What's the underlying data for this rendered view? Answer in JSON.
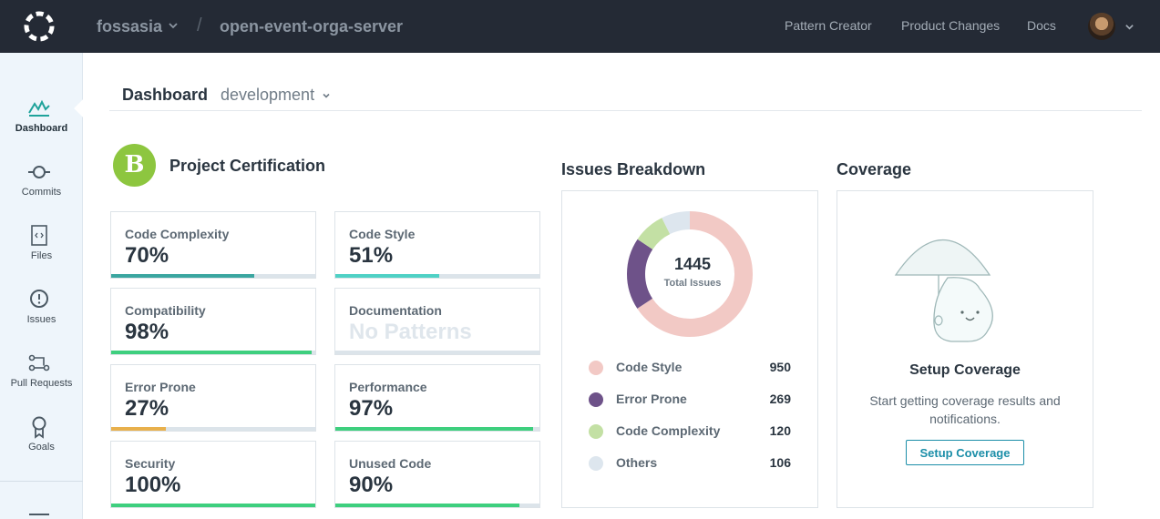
{
  "topbar": {
    "org": "fossasia",
    "separator": "/",
    "repo": "open-event-orga-server",
    "links": [
      "Pattern Creator",
      "Product Changes",
      "Docs"
    ]
  },
  "sidebar": {
    "items": [
      {
        "label": "Dashboard",
        "icon": "dashboard-icon"
      },
      {
        "label": "Commits",
        "icon": "commit-icon"
      },
      {
        "label": "Files",
        "icon": "file-code-icon"
      },
      {
        "label": "Issues",
        "icon": "alert-circle-icon"
      },
      {
        "label": "Pull Requests",
        "icon": "pull-request-icon"
      },
      {
        "label": "Goals",
        "icon": "ribbon-icon"
      }
    ]
  },
  "header": {
    "title": "Dashboard",
    "branch": "development"
  },
  "certification": {
    "grade": "B",
    "title": "Project Certification",
    "grade_color": "#8dc63f",
    "metrics": [
      {
        "name": "Code Complexity",
        "value": "70%",
        "progress": 0.7,
        "color": "#3aa6a0"
      },
      {
        "name": "Code Style",
        "value": "51%",
        "progress": 0.51,
        "color": "#4fd1c5"
      },
      {
        "name": "Compatibility",
        "value": "98%",
        "progress": 0.98,
        "color": "#3ecf7e"
      },
      {
        "name": "Documentation",
        "value": "No Patterns",
        "progress": 0,
        "color": "#dce4ea",
        "muted": true
      },
      {
        "name": "Error Prone",
        "value": "27%",
        "progress": 0.27,
        "color": "#e8b04c"
      },
      {
        "name": "Performance",
        "value": "97%",
        "progress": 0.97,
        "color": "#3ecf7e"
      },
      {
        "name": "Security",
        "value": "100%",
        "progress": 1.0,
        "color": "#3ecf7e"
      },
      {
        "name": "Unused Code",
        "value": "90%",
        "progress": 0.9,
        "color": "#3ecf7e"
      }
    ]
  },
  "issues": {
    "title": "Issues Breakdown",
    "total": "1445",
    "total_label": "Total Issues",
    "items": [
      {
        "name": "Code Style",
        "count": 950,
        "color": "#f2c9c5"
      },
      {
        "name": "Error Prone",
        "count": 269,
        "color": "#6e5289"
      },
      {
        "name": "Code Complexity",
        "count": 120,
        "color": "#c3e0a4"
      },
      {
        "name": "Others",
        "count": 106,
        "color": "#dde6ee"
      }
    ]
  },
  "coverage": {
    "title": "Coverage",
    "setup_title": "Setup Coverage",
    "description": "Start getting coverage results and notifications.",
    "button": "Setup Coverage"
  }
}
